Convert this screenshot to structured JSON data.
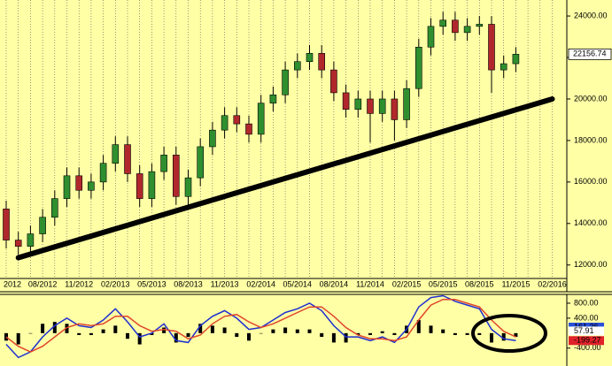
{
  "chart_data": [
    {
      "type": "candlestick",
      "categories": [
        "2012",
        null,
        null,
        "08/2012",
        null,
        null,
        "11/2012",
        null,
        null,
        "02/2013",
        null,
        null,
        "05/2013",
        null,
        null,
        "08/2013",
        null,
        null,
        "11/2013",
        null,
        null,
        "02/2014",
        null,
        null,
        "05/2014",
        null,
        null,
        "08/2014",
        null,
        null,
        "11/2014",
        null,
        null,
        "02/2015",
        null,
        null,
        "05/2015",
        null,
        null,
        "08/2015",
        null,
        null,
        "11/2015",
        null,
        null,
        "02/2016"
      ],
      "open": [
        14700,
        13200,
        12900,
        13500,
        14300,
        15200,
        16300,
        15600,
        16000,
        16900,
        17800,
        16400,
        15200,
        16500,
        17300,
        15300,
        16200,
        17700,
        18500,
        19200,
        18800,
        18300,
        19800,
        20200,
        21400,
        21800,
        22200,
        21400,
        20300,
        19500,
        20000,
        19300,
        20000,
        19000,
        20500,
        22500,
        23500,
        23800,
        23200,
        23500,
        23600,
        21400,
        21700,
        null,
        null,
        null
      ],
      "high": [
        15100,
        13600,
        13900,
        14700,
        15600,
        16700,
        16700,
        16400,
        17300,
        18200,
        18200,
        16800,
        16900,
        17700,
        17700,
        16600,
        18100,
        18900,
        19600,
        19600,
        19200,
        20200,
        20600,
        21800,
        22200,
        22600,
        22600,
        21800,
        20700,
        20400,
        20400,
        20400,
        20400,
        20900,
        22900,
        23900,
        24200,
        24200,
        23900,
        24000,
        24000,
        22100,
        22500,
        null,
        null,
        null
      ],
      "low": [
        12800,
        12500,
        12500,
        13100,
        13900,
        14800,
        15200,
        15200,
        15600,
        16500,
        16000,
        14800,
        14800,
        16100,
        14900,
        14900,
        15800,
        17300,
        18100,
        18400,
        17900,
        17900,
        19400,
        19800,
        21000,
        21400,
        21000,
        19900,
        19100,
        19100,
        17900,
        18900,
        18000,
        18600,
        20100,
        22100,
        23100,
        22800,
        22800,
        23100,
        20300,
        21000,
        21300,
        null,
        null,
        null
      ],
      "close": [
        13200,
        12900,
        13500,
        14300,
        15200,
        16300,
        15600,
        16000,
        16900,
        17800,
        16400,
        15200,
        16500,
        17300,
        15300,
        16200,
        17700,
        18500,
        19200,
        18800,
        18300,
        19800,
        20200,
        21400,
        21800,
        22200,
        21400,
        20300,
        19500,
        20000,
        19300,
        20000,
        19000,
        20500,
        22500,
        23500,
        23800,
        23200,
        23500,
        23600,
        21400,
        21700,
        22156.74,
        null,
        null,
        null
      ],
      "up_color": "#2f8f2f",
      "down_color": "#b0282c",
      "trendline": {
        "values": [
          12350,
          20000
        ],
        "color": "#000000"
      },
      "ylim": [
        11350,
        24770
      ],
      "yticks": [
        {
          "value": 12000,
          "label": "12000.00"
        },
        {
          "value": 14000,
          "label": "14000.00"
        },
        {
          "value": 16000,
          "label": "16000.00"
        },
        {
          "value": 18000,
          "label": "18000.00"
        },
        {
          "value": 20000,
          "label": "20000.00"
        },
        {
          "value": 22000,
          "label": "22000.00"
        },
        {
          "value": 24000,
          "label": "24000.00"
        }
      ],
      "grid": "x"
    },
    {
      "type": "macd",
      "series": [
        {
          "kind": "bar",
          "color": "#000000",
          "values": [
            -200,
            -300,
            0,
            250,
            300,
            250,
            -50,
            -50,
            100,
            200,
            -150,
            -300,
            -50,
            150,
            -250,
            -100,
            250,
            200,
            150,
            -100,
            -200,
            0,
            100,
            150,
            100,
            100,
            -100,
            -250,
            -250,
            -50,
            -50,
            50,
            -50,
            200,
            350,
            200,
            100,
            -50,
            -50,
            -50,
            -250,
            -200,
            -100,
            null,
            null,
            null
          ]
        },
        {
          "kind": "line",
          "color": "#1f2fd0",
          "values": [
            -300,
            -650,
            -500,
            -100,
            200,
            400,
            200,
            150,
            350,
            650,
            300,
            -100,
            0,
            250,
            -200,
            -250,
            200,
            450,
            600,
            400,
            100,
            150,
            350,
            550,
            650,
            800,
            600,
            200,
            -100,
            -100,
            -200,
            -100,
            -250,
            100,
            700,
            950,
            1000,
            850,
            750,
            650,
            100,
            -150,
            -200,
            null,
            null,
            null
          ]
        },
        {
          "kind": "line",
          "color": "#e0462a",
          "values": [
            -100,
            -350,
            -500,
            -350,
            -100,
            150,
            250,
            200,
            250,
            450,
            450,
            200,
            50,
            100,
            50,
            -150,
            -50,
            250,
            450,
            500,
            300,
            150,
            250,
            400,
            550,
            700,
            700,
            450,
            150,
            -50,
            -150,
            -150,
            -200,
            -100,
            350,
            750,
            900,
            900,
            800,
            700,
            350,
            50,
            -100,
            null,
            null,
            null
          ]
        }
      ],
      "value_boxes": [
        {
          "value": 161.36,
          "label": "161.36",
          "color": "#2a4fd8"
        },
        {
          "value": 57.91,
          "label": "57.91",
          "color": "#ffffff"
        },
        {
          "value": -199.27,
          "label": "-199.27",
          "color": "#e0222a"
        }
      ],
      "ylim": [
        -830,
        1035
      ],
      "yticks": [
        {
          "value": 800,
          "label": "800.00"
        },
        {
          "value": 400,
          "label": "400.00"
        },
        {
          "value": -400,
          "label": "-400.00"
        }
      ]
    }
  ]
}
